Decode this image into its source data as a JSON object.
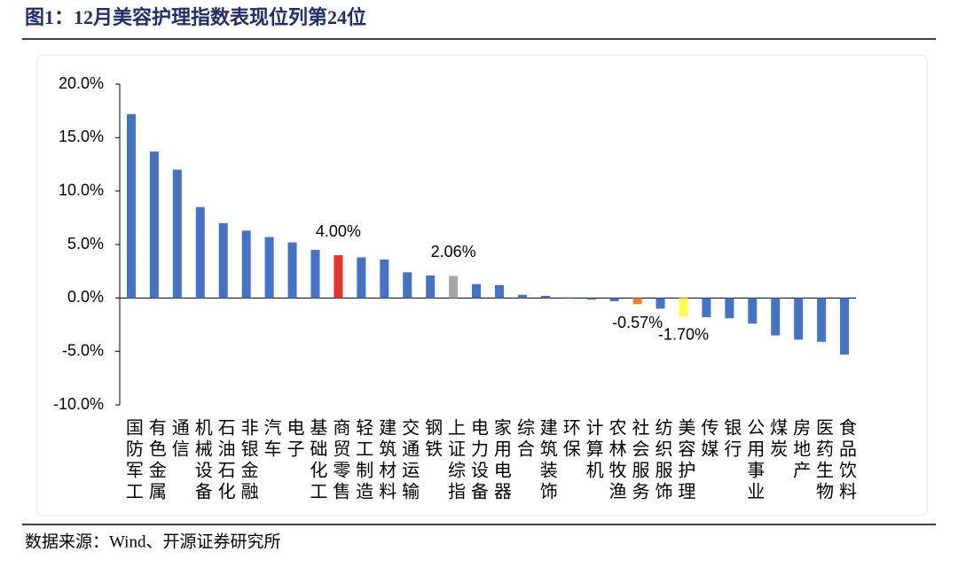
{
  "chart_data": {
    "type": "bar",
    "title": "图1：12月美容护理指数表现位列第24位",
    "source": "数据来源：Wind、开源证券研究所",
    "categories": [
      "国防军工",
      "有色金属",
      "通信",
      "机械设备",
      "石油石化",
      "非银金融",
      "汽车",
      "电子",
      "基础化工",
      "商贸零售",
      "轻工制造",
      "建筑材料",
      "交通运输",
      "钢铁",
      "上证综指",
      "电力设备",
      "家用电器",
      "综合",
      "建筑装饰",
      "环保",
      "计算机",
      "农林牧渔",
      "社会服务",
      "纺织服饰",
      "美容护理",
      "传媒",
      "银行",
      "公用事业",
      "煤炭",
      "房地产",
      "医药生物",
      "食品饮料"
    ],
    "values": [
      17.2,
      13.7,
      12.0,
      8.5,
      7.0,
      6.3,
      5.7,
      5.2,
      4.5,
      4.0,
      3.8,
      3.6,
      2.4,
      2.1,
      2.06,
      1.3,
      1.2,
      0.3,
      0.2,
      0.05,
      -0.15,
      -0.3,
      -0.57,
      -1.0,
      -1.7,
      -1.8,
      -1.9,
      -2.4,
      -3.5,
      -3.9,
      -4.1,
      -5.3
    ],
    "value_labels": [
      null,
      null,
      null,
      null,
      null,
      null,
      null,
      null,
      null,
      "4.00%",
      null,
      null,
      null,
      null,
      "2.06%",
      null,
      null,
      null,
      null,
      null,
      null,
      null,
      "-0.57%",
      null,
      "-1.70%",
      null,
      null,
      null,
      null,
      null,
      null,
      null
    ],
    "colors": [
      "#4472c4",
      "#4472c4",
      "#4472c4",
      "#4472c4",
      "#4472c4",
      "#4472c4",
      "#4472c4",
      "#4472c4",
      "#4472c4",
      "#e8312a",
      "#4472c4",
      "#4472c4",
      "#4472c4",
      "#4472c4",
      "#a6a6a6",
      "#4472c4",
      "#4472c4",
      "#4472c4",
      "#4472c4",
      "#4472c4",
      "#4472c4",
      "#4472c4",
      "#ed7d31",
      "#4472c4",
      "#ffff4d",
      "#4472c4",
      "#4472c4",
      "#4472c4",
      "#4472c4",
      "#4472c4",
      "#4472c4",
      "#4472c4"
    ],
    "ylim": [
      -10,
      20
    ],
    "yticks": [
      {
        "value": -10,
        "label": "-10.0%"
      },
      {
        "value": -5,
        "label": "-5.0%"
      },
      {
        "value": 0,
        "label": "0.0%"
      },
      {
        "value": 5,
        "label": "5.0%"
      },
      {
        "value": 10,
        "label": "10.0%"
      },
      {
        "value": 15,
        "label": "15.0%"
      },
      {
        "value": 20,
        "label": "20.0%"
      }
    ]
  }
}
